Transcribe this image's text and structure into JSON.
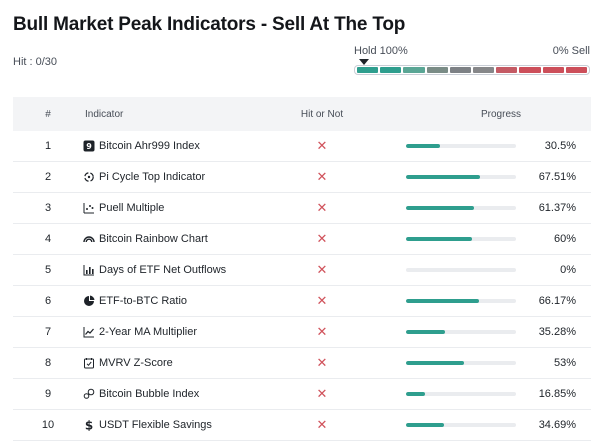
{
  "page": {
    "title": "Bull Market Peak Indicators - Sell At The Top",
    "hit_label": "Hit : 0/30"
  },
  "gauge": {
    "left_label": "Hold 100%",
    "right_label": "0% Sell",
    "segments": [
      "#2e9e8e",
      "#2e9e8e",
      "#5aa695",
      "#7a8c86",
      "#7d8185",
      "#868789",
      "#c45a64",
      "#cc4f5a",
      "#cc4f5a",
      "#cc4f5a"
    ]
  },
  "table": {
    "headers": {
      "num": "#",
      "indicator": "Indicator",
      "hit": "Hit or Not",
      "progress": "Progress"
    },
    "hit_mark": "✕",
    "rows": [
      {
        "num": "1",
        "name": "Bitcoin Ahr999 Index",
        "icon": "ahr999-icon",
        "progress_value": 30.5,
        "progress_text": "30.5%"
      },
      {
        "num": "2",
        "name": "Pi Cycle Top Indicator",
        "icon": "pi-cycle-icon",
        "progress_value": 67.51,
        "progress_text": "67.51%"
      },
      {
        "num": "3",
        "name": "Puell Multiple",
        "icon": "puell-icon",
        "progress_value": 61.37,
        "progress_text": "61.37%"
      },
      {
        "num": "4",
        "name": "Bitcoin Rainbow Chart",
        "icon": "rainbow-icon",
        "progress_value": 60,
        "progress_text": "60%"
      },
      {
        "num": "5",
        "name": "Days of ETF Net Outflows",
        "icon": "bar-chart-icon",
        "progress_value": 0,
        "progress_text": "0%"
      },
      {
        "num": "6",
        "name": "ETF-to-BTC Ratio",
        "icon": "pie-chart-icon",
        "progress_value": 66.17,
        "progress_text": "66.17%"
      },
      {
        "num": "7",
        "name": "2-Year MA Multiplier",
        "icon": "line-chart-icon",
        "progress_value": 35.28,
        "progress_text": "35.28%"
      },
      {
        "num": "8",
        "name": "MVRV Z-Score",
        "icon": "calendar-check-icon",
        "progress_value": 53,
        "progress_text": "53%"
      },
      {
        "num": "9",
        "name": "Bitcoin Bubble Index",
        "icon": "bubble-icon",
        "progress_value": 16.85,
        "progress_text": "16.85%"
      },
      {
        "num": "10",
        "name": "USDT Flexible Savings",
        "icon": "dollar-icon",
        "progress_value": 34.69,
        "progress_text": "34.69%"
      }
    ]
  }
}
